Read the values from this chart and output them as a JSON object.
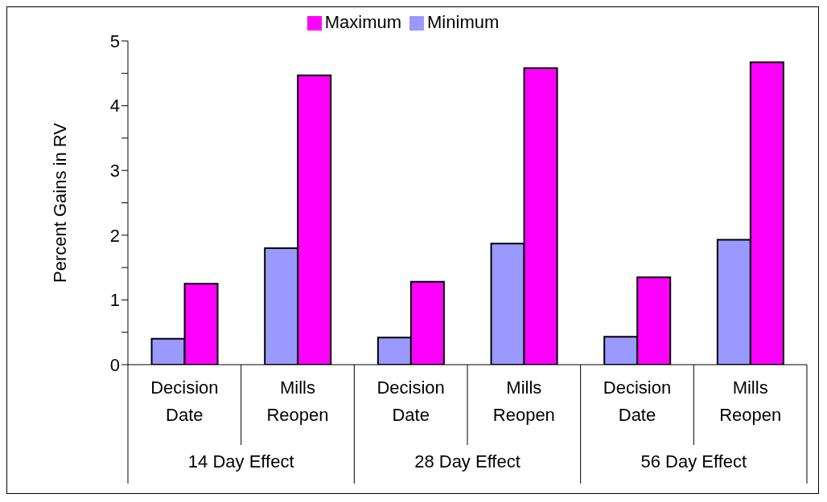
{
  "chart_data": {
    "type": "bar",
    "ylabel": "Percent Gains in RV",
    "categories": [
      "Decision Date",
      "Mills Reopen",
      "Decision Date",
      "Mills Reopen",
      "Decision Date",
      "Mills Reopen"
    ],
    "series": [
      {
        "name": "Minimum",
        "color": "#9999ff",
        "values": [
          0.4,
          1.8,
          0.42,
          1.87,
          0.43,
          1.93
        ]
      },
      {
        "name": "Maximum",
        "color": "#ff00ff",
        "values": [
          1.25,
          4.47,
          1.28,
          4.58,
          1.35,
          4.67
        ]
      }
    ],
    "annotations": [
      "14 Day Effect",
      "28 Day Effect",
      "56 Day Effect"
    ],
    "ylim": [
      0,
      5
    ],
    "yticks": [
      0,
      {
        "value": 0.5,
        "label": null
      },
      1,
      {
        "value": 1.5,
        "label": null
      },
      2,
      {
        "value": 2.5,
        "label": null
      },
      3,
      {
        "value": 3.5,
        "label": null
      },
      4,
      {
        "value": 4.5,
        "label": null
      },
      5
    ],
    "grid": false,
    "legend": "top"
  }
}
